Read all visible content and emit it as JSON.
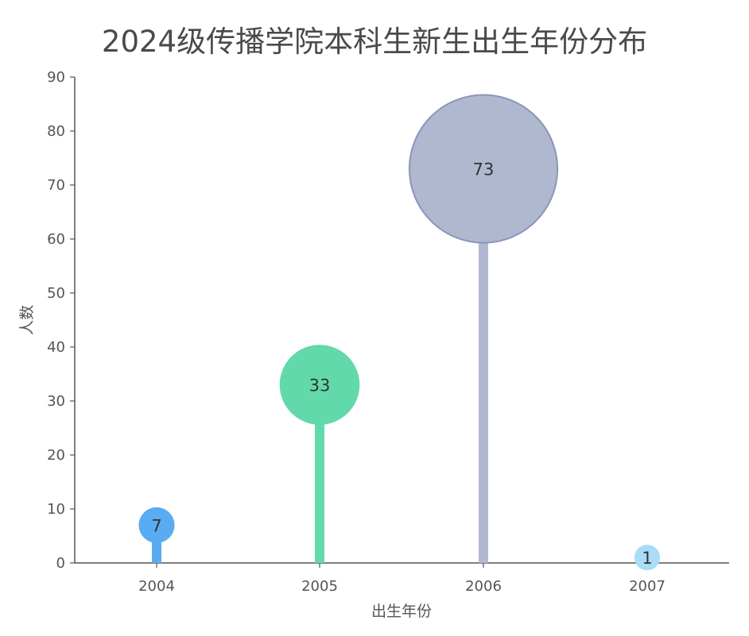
{
  "chart_data": {
    "type": "lollipop",
    "title": "2024级传播学院本科生新生出生年份分布",
    "xlabel": "出生年份",
    "ylabel": "人数",
    "categories": [
      "2004",
      "2005",
      "2006",
      "2007"
    ],
    "values": [
      7,
      33,
      73,
      1
    ],
    "data_labels": [
      "7",
      "33",
      "73",
      "1"
    ],
    "yticks": [
      "0",
      "10",
      "20",
      "30",
      "40",
      "50",
      "60",
      "70",
      "80",
      "90"
    ],
    "ylim": [
      0,
      90
    ],
    "grid": false,
    "legend": "none",
    "colors": [
      "#5aacf2",
      "#62d9aa",
      "#b0b8cf",
      "#a8dcf7"
    ],
    "marker_stroke": "#8a96b8"
  }
}
